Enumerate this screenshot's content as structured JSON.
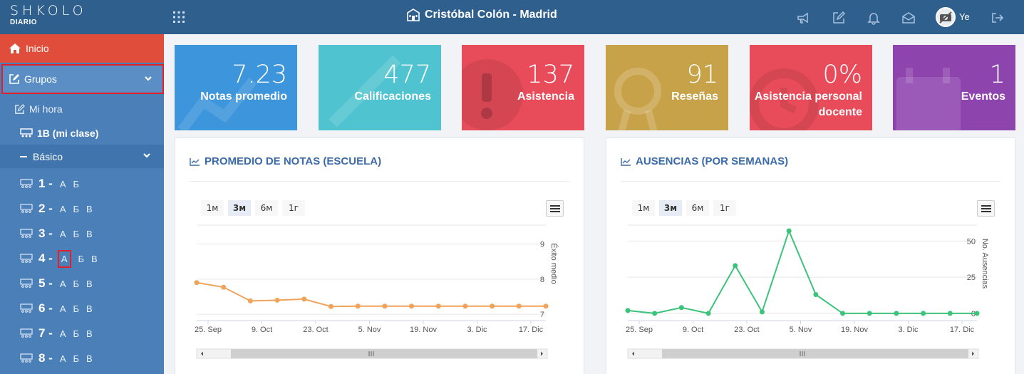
{
  "header": {
    "brand": "SHKOLO",
    "brand_sub": "DIARIO",
    "school": "Cristóbal Colón - Madrid",
    "user": "Ye",
    "icons": [
      "apps-grid-icon",
      "megaphone-icon",
      "edit-icon",
      "bell-icon",
      "envelope-icon",
      "logout-icon"
    ]
  },
  "sidebar": {
    "home": "Inicio",
    "grupos": "Grupos",
    "mi_hora": "Mi hora",
    "mi_clase": "1B (mi clase)",
    "basico": "Básico",
    "grades": [
      {
        "num": "1 -",
        "sections": [
          "А",
          "Б"
        ]
      },
      {
        "num": "2 -",
        "sections": [
          "А",
          "Б",
          "В"
        ]
      },
      {
        "num": "3 -",
        "sections": [
          "А",
          "Б",
          "В"
        ]
      },
      {
        "num": "4 -",
        "sections": [
          "А",
          "Б",
          "В"
        ]
      },
      {
        "num": "5 -",
        "sections": [
          "А",
          "Б",
          "В"
        ]
      },
      {
        "num": "6 -",
        "sections": [
          "А",
          "Б",
          "В"
        ]
      },
      {
        "num": "7 -",
        "sections": [
          "А",
          "Б",
          "В"
        ]
      },
      {
        "num": "8 -",
        "sections": [
          "А",
          "Б",
          "В"
        ]
      }
    ]
  },
  "cards": [
    {
      "value": "7.23",
      "label": "Notas promedio",
      "color": "#3d95db"
    },
    {
      "value": "477",
      "label": "Calificaciones",
      "color": "#4fc3d0"
    },
    {
      "value": "137",
      "label": "Asistencia",
      "color": "#e84c5b"
    },
    {
      "value": "91",
      "label": "Reseñas",
      "color": "#c8a248"
    },
    {
      "value": "0%",
      "label": "Asistencia personal docente",
      "color": "#e84c5b"
    },
    {
      "value": "1",
      "label": "Eventos",
      "color": "#8e44ad"
    }
  ],
  "range_buttons": [
    "1м",
    "3м",
    "6м",
    "1г"
  ],
  "chart_data": [
    {
      "type": "line",
      "title": "PROMEDIO DE NOTAS (ESCUELA)",
      "ylabel": "Éxito medio",
      "x_ticks": [
        "25. Sep",
        "9. Oct",
        "23. Oct",
        "5. Nov",
        "19. Nov",
        "3. Dic",
        "17. Dic"
      ],
      "y_ticks": [
        7,
        8,
        9
      ],
      "ylim": [
        6.9,
        9.5
      ],
      "color": "#f0a35b",
      "values": [
        7.9,
        7.77,
        7.38,
        7.4,
        7.43,
        7.22,
        7.23,
        7.23,
        7.23,
        7.23,
        7.23,
        7.23,
        7.23,
        7.23
      ]
    },
    {
      "type": "line",
      "title": "AUSENCIAS (POR SEMANAS)",
      "ylabel": "No. Ausencias",
      "x_ticks": [
        "25. Sep",
        "9. Oct",
        "23. Oct",
        "5. Nov",
        "19. Nov",
        "3. Dic",
        "17. Dic"
      ],
      "y_ticks": [
        0,
        25,
        50
      ],
      "ylim": [
        -3,
        60
      ],
      "color": "#3cc37b",
      "values": [
        2,
        0,
        4,
        0,
        33,
        1,
        57,
        13,
        0,
        0,
        0,
        0,
        0,
        0
      ]
    }
  ]
}
